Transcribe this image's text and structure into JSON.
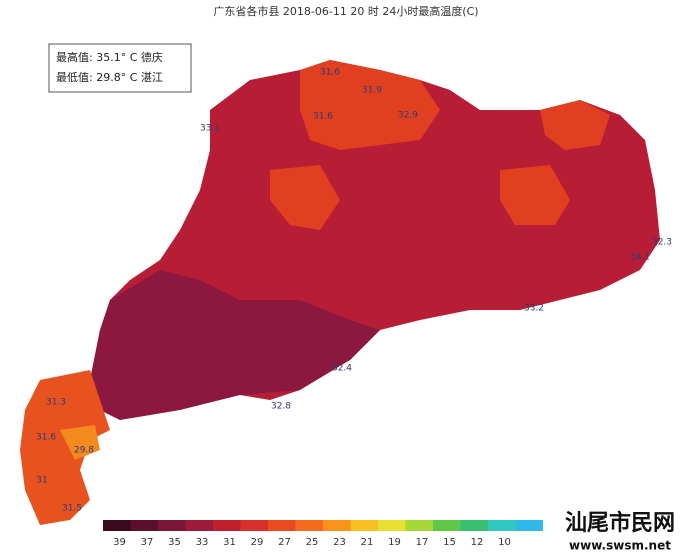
{
  "header": {
    "title": "广东省各市县 2018-06-11 20 时 24小时最高温度(C)"
  },
  "info_box": {
    "max_line": "最高值: 35.1° C 德庆",
    "min_line": "最低值: 29.8° C 湛江"
  },
  "map": {
    "labels": [
      31.6,
      31.9,
      31.6,
      32.9,
      33.1,
      32.3,
      34.1,
      33.2,
      32.4,
      32.8,
      29.8,
      31.3,
      31.6,
      31,
      31.5
    ]
  },
  "legend": {
    "ticks": [
      39,
      37,
      35,
      33,
      31,
      29,
      27,
      25,
      23,
      21,
      19,
      17,
      15,
      12,
      10
    ],
    "colors": [
      "#3a0a1c",
      "#5a0f2c",
      "#7a1638",
      "#9c1a3a",
      "#c0202e",
      "#d8302a",
      "#ea4a22",
      "#f46a1e",
      "#f8941a",
      "#f8c020",
      "#e8e030",
      "#a8d838",
      "#60c848",
      "#38c070",
      "#30c8c0",
      "#30b8e8"
    ]
  },
  "watermark": {
    "name": "汕尾市民网",
    "url": "www.swsm.net"
  }
}
